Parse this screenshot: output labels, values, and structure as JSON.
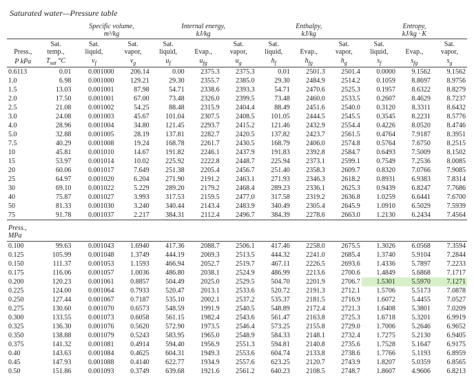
{
  "title": "Saturated water—Pressure table",
  "group_headers": {
    "specvol": {
      "label": "Specific volume,",
      "unit": "m³/kg"
    },
    "energy": {
      "label": "Internal energy,",
      "unit": "kJ/kg"
    },
    "enthalpy": {
      "label": "Enthalpy,",
      "unit": "kJ/kg"
    },
    "entropy": {
      "label": "Entropy,",
      "unit": "kJ/kg · K"
    }
  },
  "col_headers": {
    "press": "Press.,",
    "temp": "Sat.\ntemp.,",
    "vf": "Sat.\nliquid,",
    "vg": "Sat.\nvapor,",
    "uf": "Sat.\nliquid,",
    "ufg": "Evap.,",
    "ug": "Sat.\nvapor,",
    "hf": "Sat.\nliquid,",
    "hfg": "Evap.,",
    "hg": "Sat.\nvapor,",
    "sf": "Sat.\nliquid,",
    "sfg": "Evap.,",
    "sg": "Sat.\nvapor,"
  },
  "sym_headers": {
    "press": "P kPa",
    "temp": "Tsat °C",
    "vf": "v_f",
    "vg": "v_g",
    "uf": "u_f",
    "ufg": "u_fg",
    "ug": "u_g",
    "hf": "h_f",
    "hfg": "h_fg",
    "hg": "h_g",
    "sf": "s_f",
    "sfg": "s_fg",
    "sg": "s_g"
  },
  "separator": {
    "line1": "Press.,",
    "line2": "MPa"
  },
  "rows1": [
    [
      "0.6113",
      "0.01",
      "0.001000",
      "206.14",
      "0.00",
      "2375.3",
      "2375.3",
      "0.01",
      "2501.3",
      "2501.4",
      "0.0000",
      "9.1562",
      "9.1562"
    ],
    [
      "1.0",
      "6.98",
      "0.001000",
      "129.21",
      "29.30",
      "2355.7",
      "2385.0",
      "29.30",
      "2484.9",
      "2514.2",
      "0.1059",
      "8.8697",
      "8.9756"
    ],
    [
      "1.5",
      "13.03",
      "0.001001",
      "87.98",
      "54.71",
      "2338.6",
      "2393.3",
      "54.71",
      "2470.6",
      "2525.3",
      "0.1957",
      "8.6322",
      "8.8279"
    ],
    [
      "2.0",
      "17.50",
      "0.001001",
      "67.00",
      "73.48",
      "2326.0",
      "2399.5",
      "73.48",
      "2460.0",
      "2533.5",
      "0.2607",
      "8.4629",
      "8.7237"
    ],
    [
      "2.5",
      "21.08",
      "0.001002",
      "54.25",
      "88.48",
      "2315.9",
      "2404.4",
      "88.49",
      "2451.6",
      "2540.0",
      "0.3120",
      "8.3311",
      "8.6432"
    ],
    [
      "3.0",
      "24.08",
      "0.001003",
      "45.67",
      "101.04",
      "2307.5",
      "2408.5",
      "101.05",
      "2444.5",
      "2545.5",
      "0.3545",
      "8.2231",
      "8.5776"
    ],
    [
      "4.0",
      "28.96",
      "0.001004",
      "34.80",
      "121.45",
      "2293.7",
      "2415.2",
      "121.46",
      "2432.9",
      "2554.4",
      "0.4226",
      "8.0520",
      "8.4746"
    ],
    [
      "5.0",
      "32.88",
      "0.001005",
      "28.19",
      "137.81",
      "2282.7",
      "2420.5",
      "137.82",
      "2423.7",
      "2561.5",
      "0.4764",
      "7.9187",
      "8.3951"
    ],
    [
      "7.5",
      "40.29",
      "0.001008",
      "19.24",
      "168.78",
      "2261.7",
      "2430.5",
      "168.79",
      "2406.0",
      "2574.8",
      "0.5764",
      "7.6750",
      "8.2515"
    ],
    [
      "10",
      "45.81",
      "0.001010",
      "14.67",
      "191.82",
      "2246.1",
      "2437.9",
      "191.83",
      "2392.8",
      "2584.7",
      "0.6493",
      "7.5009",
      "8.1502"
    ],
    [
      "15",
      "53.97",
      "0.001014",
      "10.02",
      "225.92",
      "2222.8",
      "2448.7",
      "225.94",
      "2373.1",
      "2599.1",
      "0.7549",
      "7.2536",
      "8.0085"
    ],
    [
      "20",
      "60.06",
      "0.001017",
      "7.649",
      "251.38",
      "2205.4",
      "2456.7",
      "251.40",
      "2358.3",
      "2609.7",
      "0.8320",
      "7.0766",
      "7.9085"
    ],
    [
      "25",
      "64.97",
      "0.001020",
      "6.204",
      "271.90",
      "2191.2",
      "2463.1",
      "271.93",
      "2346.3",
      "2618.2",
      "0.8931",
      "6.9383",
      "7.8314"
    ],
    [
      "30",
      "69.10",
      "0.001022",
      "5.229",
      "289.20",
      "2179.2",
      "2468.4",
      "289.23",
      "2336.1",
      "2625.3",
      "0.9439",
      "6.8247",
      "7.7686"
    ],
    [
      "40",
      "75.87",
      "0.001027",
      "3.993",
      "317.53",
      "2159.5",
      "2477.0",
      "317.58",
      "2319.2",
      "2636.8",
      "1.0259",
      "6.6441",
      "7.6700"
    ],
    [
      "50",
      "81.33",
      "0.001030",
      "3.240",
      "340.44",
      "2143.4",
      "2483.9",
      "340.49",
      "2305.4",
      "2645.9",
      "1.0910",
      "6.5029",
      "7.5939"
    ],
    [
      "75",
      "91.78",
      "0.001037",
      "2.217",
      "384.31",
      "2112.4",
      "2496.7",
      "384.39",
      "2278.6",
      "2663.0",
      "1.2130",
      "6.2434",
      "7.4564"
    ]
  ],
  "rows2": [
    [
      "0.100",
      "99.63",
      "0.001043",
      "1.6940",
      "417.36",
      "2088.7",
      "2506.1",
      "417.46",
      "2258.0",
      "2675.5",
      "1.3026",
      "6.0568",
      "7.3594"
    ],
    [
      "0.125",
      "105.99",
      "0.001048",
      "1.3749",
      "444.19",
      "2069.3",
      "2513.5",
      "444.32",
      "2241.0",
      "2685.4",
      "1.3740",
      "5.9104",
      "7.2844"
    ],
    [
      "0.150",
      "111.37",
      "0.001053",
      "1.1593",
      "466.94",
      "2052.7",
      "2519.7",
      "467.11",
      "2226.5",
      "2693.6",
      "1.4336",
      "5.7897",
      "7.2233"
    ],
    [
      "0.175",
      "116.06",
      "0.001057",
      "1.0036",
      "486.80",
      "2038.1",
      "2524.9",
      "486.99",
      "2213.6",
      "2700.6",
      "1.4849",
      "5.6868",
      "7.1717"
    ],
    [
      "0.200",
      "120.23",
      "0.001061",
      "0.8857",
      "504.49",
      "2025.0",
      "2529.5",
      "504.70",
      "2201.9",
      "2706.7",
      "1.5301",
      "5.5970",
      "7.1271"
    ],
    [
      "0.225",
      "124.00",
      "0.001064",
      "0.7933",
      "520.47",
      "2013.1",
      "2533.6",
      "520.72",
      "2191.3",
      "2712.1",
      "1.5706",
      "5.5173",
      "7.0878"
    ],
    [
      "0.250",
      "127.44",
      "0.001067",
      "0.7187",
      "535.10",
      "2002.1",
      "2537.2",
      "535.37",
      "2181.5",
      "2716.9",
      "1.6072",
      "5.4455",
      "7.0527"
    ],
    [
      "0.275",
      "130.60",
      "0.001070",
      "0.6573",
      "548.59",
      "1991.9",
      "2540.5",
      "548.89",
      "2172.4",
      "2721.3",
      "1.6408",
      "5.3801",
      "7.0209"
    ],
    [
      "0.300",
      "133.55",
      "0.001073",
      "0.6058",
      "561.15",
      "1982.4",
      "2543.6",
      "561.47",
      "2163.8",
      "2725.3",
      "1.6718",
      "5.3201",
      "6.9919"
    ],
    [
      "0.325",
      "136.30",
      "0.001076",
      "0.5620",
      "572.90",
      "1973.5",
      "2546.4",
      "573.25",
      "2155.8",
      "2729.0",
      "1.7006",
      "5.2646",
      "6.9652"
    ],
    [
      "0.350",
      "138.88",
      "0.001079",
      "0.5243",
      "583.95",
      "1965.0",
      "2548.9",
      "584.33",
      "2148.1",
      "2732.4",
      "1.7275",
      "5.2130",
      "6.9405"
    ],
    [
      "0.375",
      "141.32",
      "0.001081",
      "0.4914",
      "594.40",
      "1956.9",
      "2551.3",
      "594.81",
      "2140.8",
      "2735.6",
      "1.7528",
      "5.1647",
      "6.9175"
    ],
    [
      "0.40",
      "143.63",
      "0.001084",
      "0.4625",
      "604.31",
      "1949.3",
      "2553.6",
      "604.74",
      "2133.8",
      "2738.6",
      "1.7766",
      "5.1193",
      "6.8959"
    ],
    [
      "0.45",
      "147.93",
      "0.001088",
      "0.4140",
      "622.77",
      "1934.9",
      "2557.6",
      "623.25",
      "2120.7",
      "2743.9",
      "1.8207",
      "5.0359",
      "6.8565"
    ],
    [
      "0.50",
      "151.86",
      "0.001093",
      "0.3749",
      "639.68",
      "1921.6",
      "2561.2",
      "640.23",
      "2108.5",
      "2748.7",
      "1.8607",
      "4.9606",
      "6.8213"
    ]
  ],
  "highlight_row_index": 4,
  "highlight_cols": [
    10,
    11,
    12
  ],
  "highlight_color": "#d8f0c8",
  "colors": {
    "text": "#222222",
    "rule": "#444444",
    "background": "#ffffff"
  },
  "fonts": {
    "body_pt": 10,
    "title_pt": 12,
    "family": "Times New Roman"
  }
}
